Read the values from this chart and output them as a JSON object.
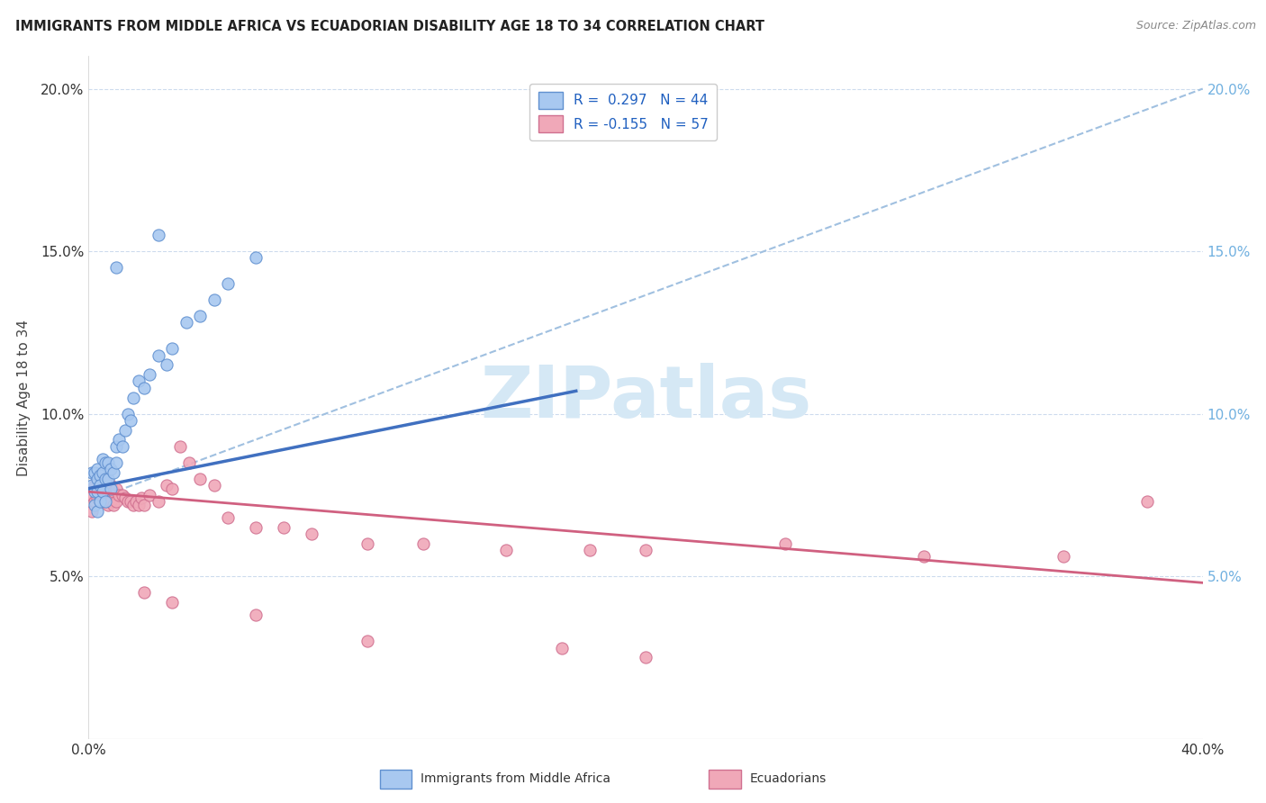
{
  "title": "IMMIGRANTS FROM MIDDLE AFRICA VS ECUADORIAN DISABILITY AGE 18 TO 34 CORRELATION CHART",
  "source": "Source: ZipAtlas.com",
  "ylabel": "Disability Age 18 to 34",
  "xlim": [
    0.0,
    0.4
  ],
  "ylim": [
    0.0,
    0.21
  ],
  "xticks": [
    0.0,
    0.05,
    0.1,
    0.15,
    0.2,
    0.25,
    0.3,
    0.35,
    0.4
  ],
  "yticks": [
    0.05,
    0.1,
    0.15,
    0.2
  ],
  "blue_R": 0.297,
  "blue_N": 44,
  "pink_R": -0.155,
  "pink_N": 57,
  "blue_fill": "#A8C8F0",
  "pink_fill": "#F0A8B8",
  "blue_edge": "#6090D0",
  "pink_edge": "#D07090",
  "blue_line": "#4070C0",
  "pink_line": "#D06080",
  "dash_color": "#A0C0E0",
  "right_tick_color": "#70B0E0",
  "watermark_color": "#D5E8F5",
  "blue_scatter_x": [
    0.001,
    0.001,
    0.002,
    0.002,
    0.002,
    0.003,
    0.003,
    0.003,
    0.003,
    0.004,
    0.004,
    0.004,
    0.005,
    0.005,
    0.005,
    0.006,
    0.006,
    0.006,
    0.007,
    0.007,
    0.008,
    0.008,
    0.009,
    0.01,
    0.01,
    0.011,
    0.012,
    0.013,
    0.014,
    0.015,
    0.016,
    0.018,
    0.02,
    0.022,
    0.025,
    0.028,
    0.03,
    0.035,
    0.04,
    0.045,
    0.05,
    0.06,
    0.01,
    0.025
  ],
  "blue_scatter_y": [
    0.082,
    0.078,
    0.082,
    0.076,
    0.072,
    0.083,
    0.08,
    0.076,
    0.07,
    0.081,
    0.078,
    0.073,
    0.086,
    0.082,
    0.076,
    0.085,
    0.08,
    0.073,
    0.085,
    0.08,
    0.083,
    0.077,
    0.082,
    0.09,
    0.085,
    0.092,
    0.09,
    0.095,
    0.1,
    0.098,
    0.105,
    0.11,
    0.108,
    0.112,
    0.118,
    0.115,
    0.12,
    0.128,
    0.13,
    0.135,
    0.14,
    0.148,
    0.145,
    0.155
  ],
  "pink_scatter_x": [
    0.001,
    0.001,
    0.002,
    0.002,
    0.003,
    0.003,
    0.004,
    0.004,
    0.005,
    0.005,
    0.006,
    0.006,
    0.007,
    0.007,
    0.008,
    0.008,
    0.009,
    0.009,
    0.01,
    0.01,
    0.011,
    0.012,
    0.013,
    0.014,
    0.015,
    0.016,
    0.017,
    0.018,
    0.019,
    0.02,
    0.022,
    0.025,
    0.028,
    0.03,
    0.033,
    0.036,
    0.04,
    0.045,
    0.05,
    0.06,
    0.07,
    0.08,
    0.1,
    0.12,
    0.15,
    0.18,
    0.2,
    0.25,
    0.3,
    0.35,
    0.38,
    0.02,
    0.03,
    0.06,
    0.1,
    0.17,
    0.2
  ],
  "pink_scatter_y": [
    0.075,
    0.07,
    0.078,
    0.073,
    0.08,
    0.074,
    0.078,
    0.073,
    0.079,
    0.073,
    0.079,
    0.073,
    0.077,
    0.072,
    0.078,
    0.073,
    0.076,
    0.072,
    0.077,
    0.073,
    0.075,
    0.075,
    0.074,
    0.073,
    0.073,
    0.072,
    0.073,
    0.072,
    0.074,
    0.072,
    0.075,
    0.073,
    0.078,
    0.077,
    0.09,
    0.085,
    0.08,
    0.078,
    0.068,
    0.065,
    0.065,
    0.063,
    0.06,
    0.06,
    0.058,
    0.058,
    0.058,
    0.06,
    0.056,
    0.056,
    0.073,
    0.045,
    0.042,
    0.038,
    0.03,
    0.028,
    0.025
  ],
  "blue_line_x0": 0.0,
  "blue_line_y0": 0.077,
  "blue_line_x1": 0.175,
  "blue_line_y1": 0.107,
  "dash_line_x0": 0.0,
  "dash_line_y0": 0.073,
  "dash_line_x1": 0.4,
  "dash_line_y1": 0.2,
  "pink_line_x0": 0.0,
  "pink_line_y0": 0.076,
  "pink_line_x1": 0.4,
  "pink_line_y1": 0.048
}
